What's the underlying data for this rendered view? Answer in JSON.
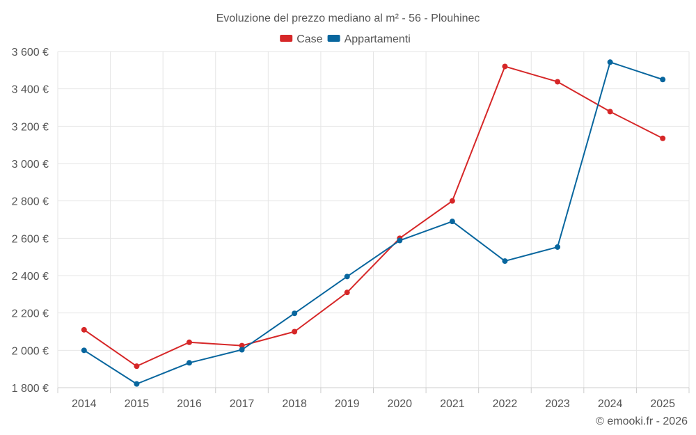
{
  "chart_data": {
    "type": "line",
    "title": "Evoluzione del prezzo mediano al m² - 56 - Plouhinec",
    "categories": [
      "2014",
      "2015",
      "2016",
      "2017",
      "2018",
      "2019",
      "2020",
      "2021",
      "2022",
      "2023",
      "2024",
      "2025"
    ],
    "series": [
      {
        "name": "Case",
        "color": "#d62728",
        "values": [
          2110,
          1915,
          2043,
          2025,
          2100,
          2310,
          2600,
          2800,
          3520,
          3438,
          3278,
          3135
        ]
      },
      {
        "name": "Appartamenti",
        "color": "#08669e",
        "values": [
          2000,
          1820,
          1933,
          2003,
          2198,
          2395,
          2588,
          2690,
          2478,
          2553,
          3543,
          3450
        ]
      }
    ],
    "yticks": [
      1800,
      2000,
      2200,
      2400,
      2600,
      2800,
      3000,
      3200,
      3400,
      3600
    ],
    "ytick_labels": [
      "1 800 €",
      "2 000 €",
      "2 200 €",
      "2 400 €",
      "2 600 €",
      "2 800 €",
      "3 000 €",
      "3 200 €",
      "3 400 €",
      "3 600 €"
    ],
    "ylim": [
      1800,
      3600
    ],
    "xlabel": "",
    "ylabel": "",
    "grid": true,
    "legend_position": "top-center"
  },
  "credit": "© emooki.fr - 2026"
}
